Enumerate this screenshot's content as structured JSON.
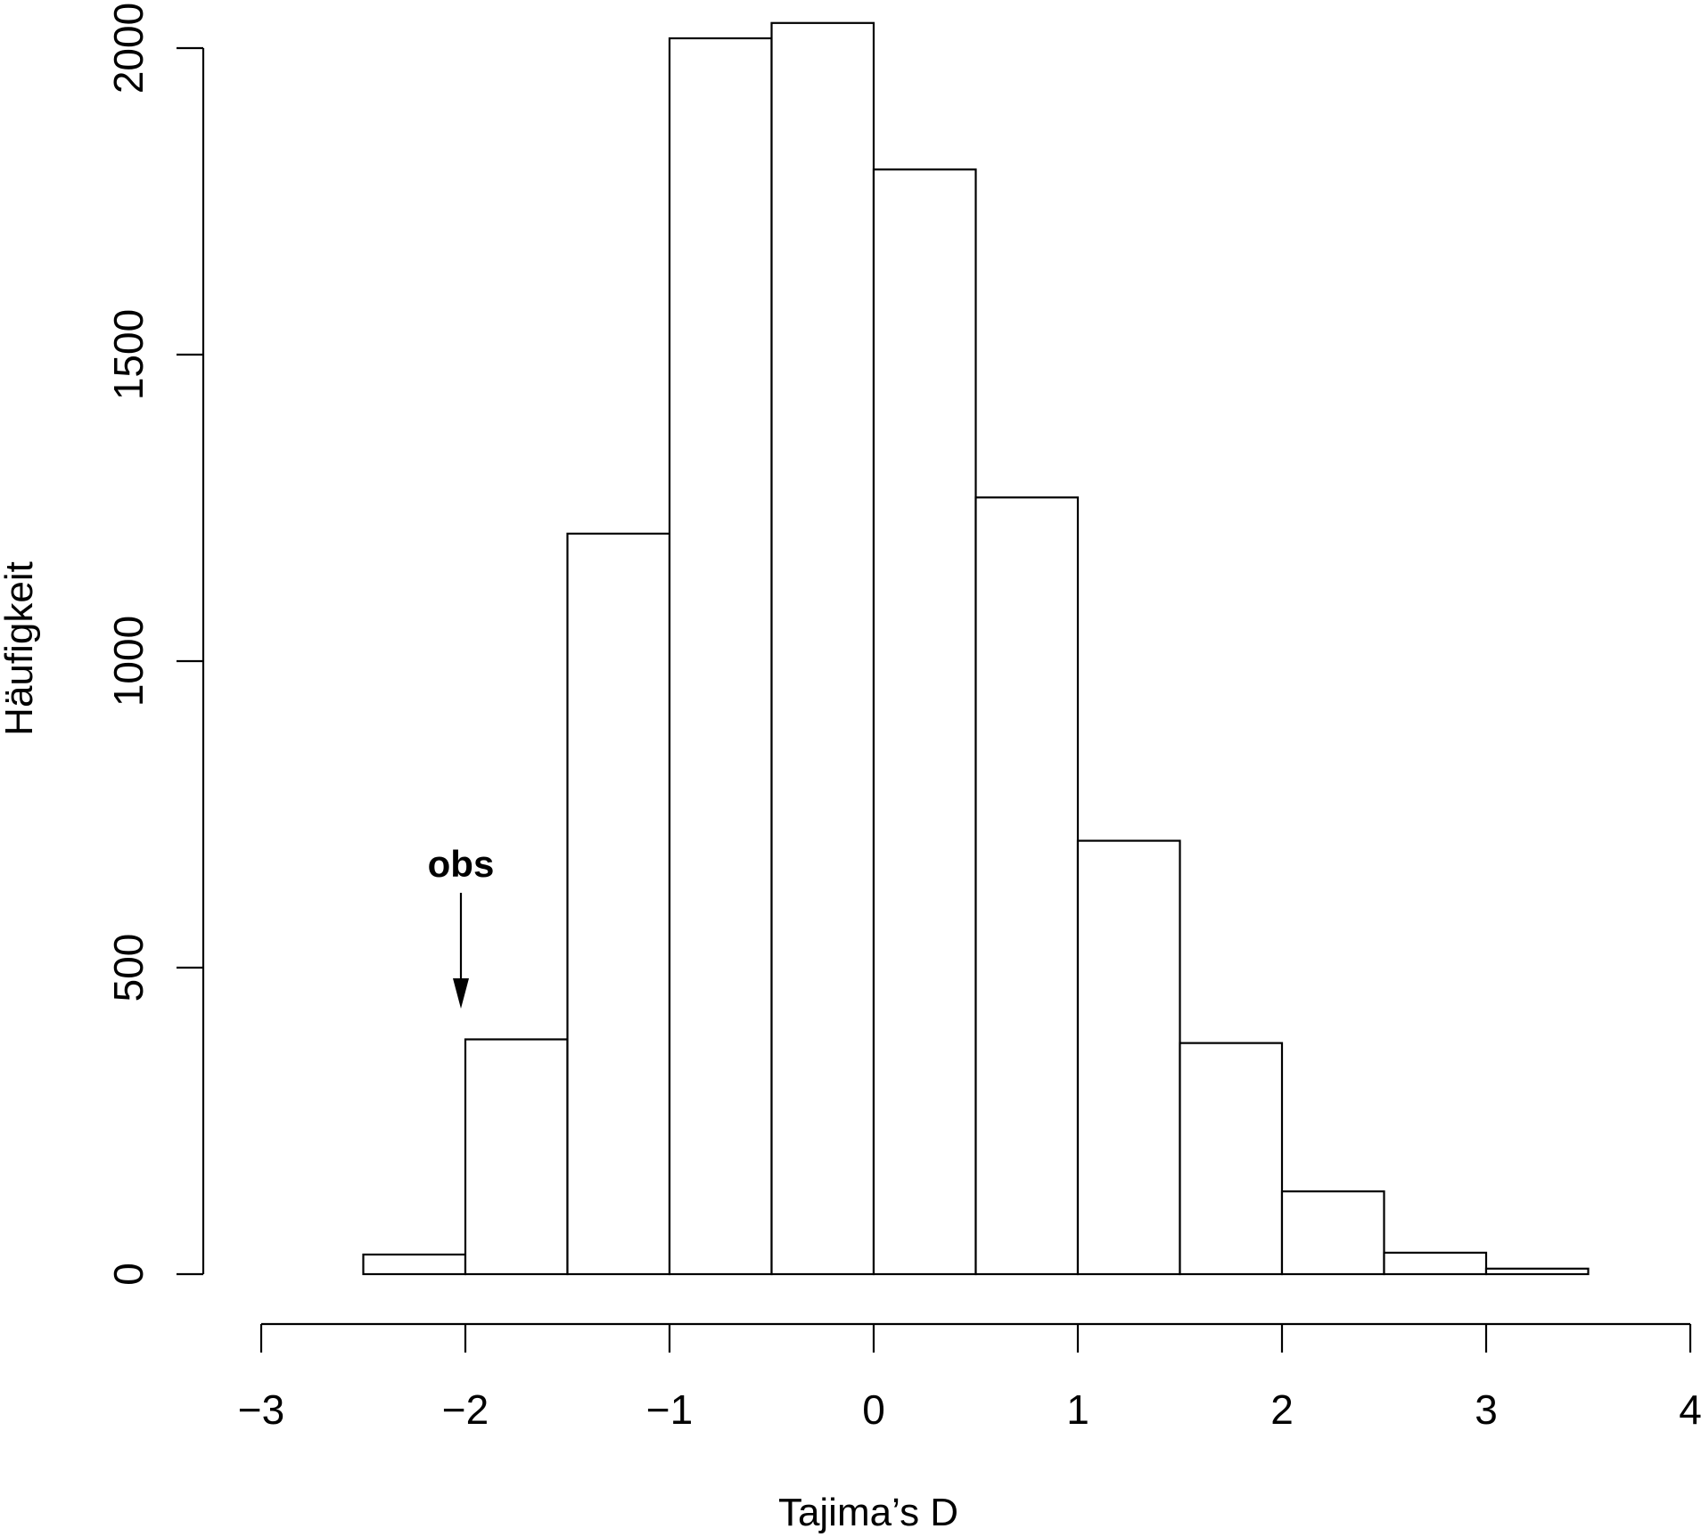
{
  "chart_data": {
    "type": "bar",
    "title": "",
    "xlabel": "Tajima’s D",
    "ylabel": "Häufigkeit",
    "xlim": [
      -3,
      4
    ],
    "ylim": [
      0,
      2000
    ],
    "x_ticks": [
      "−3",
      "−2",
      "−1",
      "0",
      "1",
      "2",
      "3",
      "4"
    ],
    "y_ticks": [
      "0",
      "500",
      "1000",
      "1500",
      "2000"
    ],
    "bin_width": 0.5,
    "bins": [
      {
        "from": -2.5,
        "to": -2.0,
        "count": 32
      },
      {
        "from": -2.0,
        "to": -1.5,
        "count": 383
      },
      {
        "from": -1.5,
        "to": -1.0,
        "count": 1208
      },
      {
        "from": -1.0,
        "to": -0.5,
        "count": 2016
      },
      {
        "from": -0.5,
        "to": 0.0,
        "count": 2041
      },
      {
        "from": 0.0,
        "to": 0.5,
        "count": 1802
      },
      {
        "from": 0.5,
        "to": 1.0,
        "count": 1267
      },
      {
        "from": 1.0,
        "to": 1.5,
        "count": 707
      },
      {
        "from": 1.5,
        "to": 2.0,
        "count": 377
      },
      {
        "from": 2.0,
        "to": 2.5,
        "count": 135
      },
      {
        "from": 2.5,
        "to": 3.0,
        "count": 35
      },
      {
        "from": 3.0,
        "to": 3.5,
        "count": 9
      }
    ],
    "grid": false,
    "annotation": {
      "text": "obs",
      "x": -2.0
    }
  }
}
